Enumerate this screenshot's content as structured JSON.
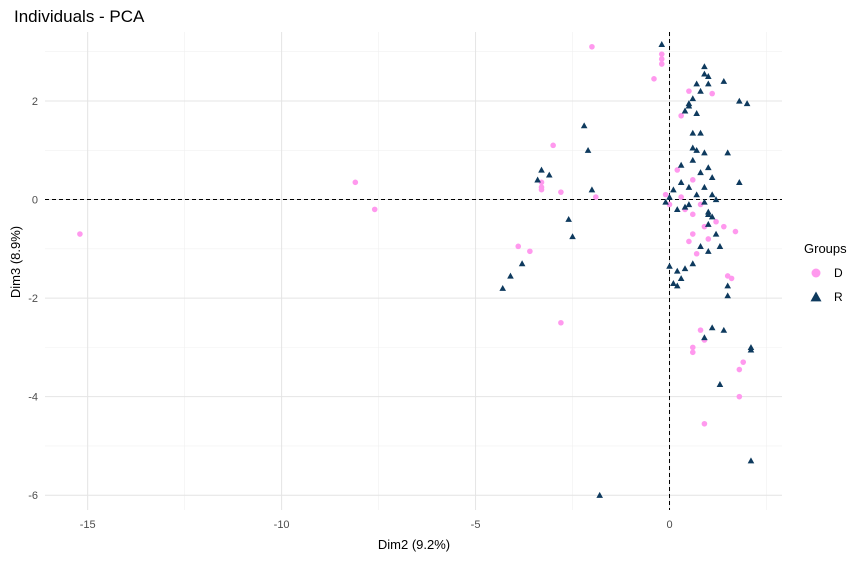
{
  "chart_data": {
    "type": "scatter",
    "title": "Individuals - PCA",
    "xlabel": "Dim2 (9.2%)",
    "ylabel": "Dim3 (8.9%)",
    "xlim": [
      -16.1,
      2.9
    ],
    "ylim": [
      -6.3,
      3.4
    ],
    "xticks": [
      -15,
      -10,
      -5,
      0
    ],
    "yticks": [
      -6,
      -4,
      -2,
      0,
      2
    ],
    "grid": true,
    "reference_lines": {
      "x": 0,
      "y": 0,
      "style": "dashed"
    },
    "legend": {
      "title": "Groups",
      "position": "right"
    },
    "series": [
      {
        "name": "D",
        "marker": "circle",
        "color": "#FF99EE",
        "points": [
          [
            -15.2,
            -0.7
          ],
          [
            -8.1,
            0.35
          ],
          [
            -7.6,
            -0.2
          ],
          [
            -3.0,
            1.1
          ],
          [
            -3.3,
            0.35
          ],
          [
            -3.3,
            0.25
          ],
          [
            -3.3,
            0.2
          ],
          [
            -2.8,
            0.15
          ],
          [
            -1.9,
            0.05
          ],
          [
            -2.0,
            3.1
          ],
          [
            -3.9,
            -0.95
          ],
          [
            -3.6,
            -1.05
          ],
          [
            -2.8,
            -2.5
          ],
          [
            -0.4,
            2.45
          ],
          [
            -0.2,
            2.95
          ],
          [
            -0.2,
            2.85
          ],
          [
            -0.2,
            2.75
          ],
          [
            -0.1,
            0.1
          ],
          [
            0.0,
            -0.1
          ],
          [
            0.3,
            1.7
          ],
          [
            0.5,
            2.2
          ],
          [
            0.6,
            0.4
          ],
          [
            0.6,
            -0.3
          ],
          [
            0.8,
            -0.1
          ],
          [
            0.6,
            -0.7
          ],
          [
            0.9,
            -0.55
          ],
          [
            0.5,
            -0.85
          ],
          [
            0.2,
            0.6
          ],
          [
            0.4,
            -0.2
          ],
          [
            1.2,
            -0.45
          ],
          [
            1.4,
            -0.55
          ],
          [
            1.7,
            -0.65
          ],
          [
            1.0,
            -0.8
          ],
          [
            0.7,
            -1.1
          ],
          [
            1.5,
            -1.55
          ],
          [
            1.6,
            -1.6
          ],
          [
            0.8,
            -2.65
          ],
          [
            0.9,
            -2.85
          ],
          [
            0.6,
            -3.0
          ],
          [
            0.6,
            -3.1
          ],
          [
            1.9,
            -3.3
          ],
          [
            1.8,
            -3.45
          ],
          [
            1.8,
            -4.0
          ],
          [
            0.9,
            -4.55
          ],
          [
            1.1,
            2.15
          ],
          [
            0.3,
            0.05
          ]
        ]
      },
      {
        "name": "R",
        "marker": "triangle",
        "color": "#0E3A5E",
        "points": [
          [
            -4.3,
            -1.8
          ],
          [
            -4.1,
            -1.55
          ],
          [
            -3.8,
            -1.3
          ],
          [
            -3.4,
            0.4
          ],
          [
            -3.3,
            0.6
          ],
          [
            -3.1,
            0.5
          ],
          [
            -2.6,
            -0.4
          ],
          [
            -2.5,
            -0.75
          ],
          [
            -2.2,
            1.5
          ],
          [
            -2.1,
            1.0
          ],
          [
            -2.0,
            0.2
          ],
          [
            -1.8,
            -6.0
          ],
          [
            -0.2,
            3.15
          ],
          [
            0.0,
            0.05
          ],
          [
            -0.1,
            -0.05
          ],
          [
            0.1,
            0.2
          ],
          [
            0.3,
            0.7
          ],
          [
            0.3,
            0.35
          ],
          [
            0.4,
            -0.15
          ],
          [
            0.5,
            0.25
          ],
          [
            0.6,
            0.8
          ],
          [
            0.6,
            1.05
          ],
          [
            0.7,
            1.0
          ],
          [
            0.6,
            1.35
          ],
          [
            0.8,
            2.2
          ],
          [
            0.9,
            2.7
          ],
          [
            0.9,
            2.55
          ],
          [
            1.0,
            2.35
          ],
          [
            1.0,
            2.5
          ],
          [
            0.7,
            2.35
          ],
          [
            0.6,
            2.05
          ],
          [
            0.5,
            1.95
          ],
          [
            0.5,
            1.9
          ],
          [
            0.4,
            1.8
          ],
          [
            0.7,
            1.75
          ],
          [
            1.4,
            2.4
          ],
          [
            1.8,
            2.0
          ],
          [
            2.0,
            1.95
          ],
          [
            0.8,
            1.35
          ],
          [
            0.9,
            0.95
          ],
          [
            1.0,
            0.65
          ],
          [
            0.8,
            0.55
          ],
          [
            1.1,
            0.45
          ],
          [
            0.9,
            0.25
          ],
          [
            1.1,
            0.1
          ],
          [
            1.2,
            0.0
          ],
          [
            0.9,
            -0.05
          ],
          [
            1.0,
            -0.25
          ],
          [
            1.1,
            -0.35
          ],
          [
            1.0,
            -0.5
          ],
          [
            1.2,
            -0.7
          ],
          [
            1.3,
            -0.95
          ],
          [
            1.0,
            -1.05
          ],
          [
            0.8,
            -0.95
          ],
          [
            1.5,
            0.95
          ],
          [
            1.8,
            0.35
          ],
          [
            0.0,
            -1.35
          ],
          [
            0.2,
            -1.45
          ],
          [
            0.3,
            -1.6
          ],
          [
            0.1,
            -1.7
          ],
          [
            0.2,
            -1.75
          ],
          [
            0.4,
            -1.4
          ],
          [
            0.6,
            -1.3
          ],
          [
            1.5,
            -1.75
          ],
          [
            1.5,
            -1.95
          ],
          [
            0.9,
            -2.8
          ],
          [
            1.1,
            -2.6
          ],
          [
            1.4,
            -2.65
          ],
          [
            1.3,
            -3.75
          ],
          [
            2.1,
            -3.0
          ],
          [
            2.1,
            -3.05
          ],
          [
            2.1,
            -5.3
          ],
          [
            0.5,
            -0.1
          ],
          [
            0.2,
            -0.2
          ],
          [
            0.7,
            0.1
          ],
          [
            1.0,
            -0.3
          ]
        ]
      }
    ]
  }
}
